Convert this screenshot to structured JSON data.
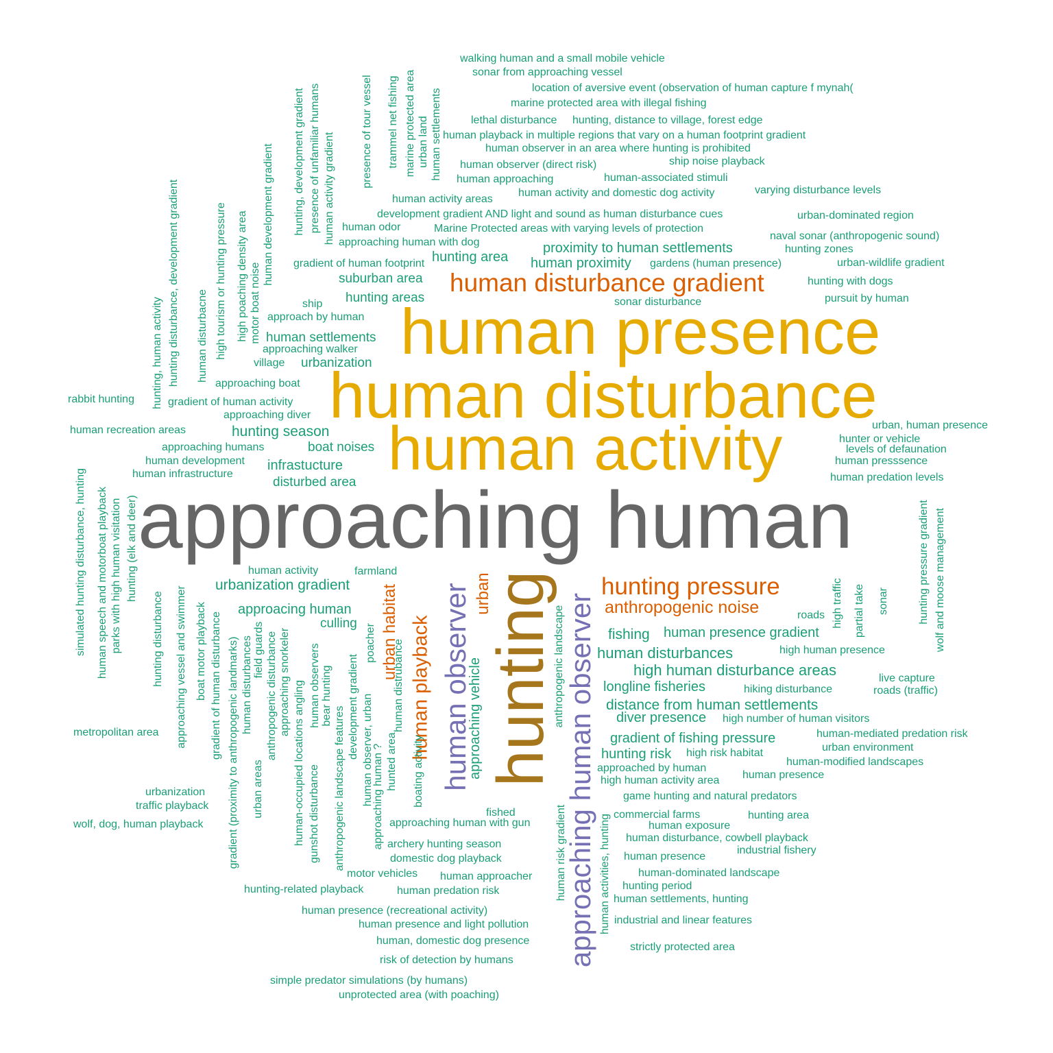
{
  "colors": {
    "teal": "#1b9e77",
    "gold": "#e6ab02",
    "gray": "#666666",
    "brown": "#a6761d",
    "orange": "#d95f02",
    "purple": "#7570b3"
  },
  "words": [
    "approaching human",
    "hunting",
    "human presence",
    "human disturbance",
    "human activity",
    "approaching human observer",
    "human observer",
    "human disturbance gradient",
    "hunting pressure",
    "human playback",
    "anthropogenic noise",
    "urban habitat",
    "urban",
    "walking human and a small mobile vehicle",
    "sonar from approaching vessel",
    "location of aversive event (observation of human capture f mynah(",
    "marine protected area with illegal fishing",
    "lethal disturbance",
    "hunting, distance to village, forest edge",
    "human playback in multiple regions that vary on a human footprint gradient",
    "human observer in an area where hunting is prohibited",
    "human observer (direct risk)",
    "ship noise playback",
    "human approaching",
    "human-associated stimuli",
    "human activity and domestic dog activity",
    "varying disturbance levels",
    "human activity areas",
    "development gradient AND light and sound as human disturbance cues",
    "urban-dominated region",
    "human odor",
    "Marine Protected areas with varying levels of protection",
    "naval sonar (anthropogenic sound)",
    "approaching human with dog",
    "hunting zones",
    "proximity to human settlements",
    "gradient of human footprint",
    "hunting area",
    "human proximity",
    "gardens (human presence)",
    "urban-wildlife gradient",
    "suburban area",
    "hunting with dogs",
    "hunting areas",
    "pursuit by human",
    "ship",
    "sonar disturbance",
    "approach by human",
    "human settlements",
    "approaching walker",
    "village",
    "urbanization",
    "approaching boat",
    "rabbit hunting",
    "gradient of human activity",
    "approaching diver",
    "urban, human presence",
    "human recreation areas",
    "hunting season",
    "hunter or vehicle",
    "approaching humans",
    "boat noises",
    "levels of defaunation",
    "human development",
    "infrastucture",
    "human presssence",
    "human infrastructure",
    "human predation levels",
    "disturbed area",
    "human activity",
    "farmland",
    "urbanization gradient",
    "approacing human",
    "fishing",
    "human presence gradient",
    "culling",
    "roads",
    "human disturbances",
    "high human presence",
    "high human disturbance areas",
    "live capture",
    "longline fisheries",
    "hiking disturbance",
    "roads (traffic)",
    "distance from human settlements",
    "diver presence",
    "high number of human visitors",
    "metropolitan area",
    "gradient of fishing pressure",
    "human-mediated predation risk",
    "urban environment",
    "hunting risk",
    "high risk habitat",
    "human-modified landscapes",
    "approached by human",
    "human presence",
    "high human activity area",
    "urbanization",
    "game hunting and natural predators",
    "traffic playback",
    "fished",
    "commercial farms",
    "hunting area",
    "wolf, dog, human playback",
    "approaching human with gun",
    "human exposure",
    "human disturbance, cowbell playback",
    "archery hunting season",
    "industrial fishery",
    "human presence",
    "domestic dog playback",
    "motor vehicles",
    "human approacher",
    "human-dominated landscape",
    "hunting period",
    "hunting-related playback",
    "human predation risk",
    "human settlements, hunting",
    "human presence (recreational activity)",
    "industrial and linear features",
    "human presence and light pollution",
    "human, domestic dog presence",
    "strictly protected area",
    "risk of detection by humans",
    "simple predator simulations (by humans)",
    "unprotected area (with poaching)",
    "presence of tour vessel",
    "trammel net fishing",
    "marine protected area",
    "urban land",
    "human settlements",
    "hunting, development gradient",
    "presence of unfamiliar humans",
    "human activity gradient",
    "human development gradient",
    "hunting disturbance, development gradient",
    "high tourism or hunting pressure",
    "high poaching density area",
    "motor boat noise",
    "hunting, human activity",
    "human disturbacne",
    "simulated hunting disturbance, hunting",
    "human speech and motorboat playback",
    "parks with high human visitation",
    "hunting (elk and deer)",
    "hunting disturbance",
    "approaching vessel and swimmer",
    "boat motor playback",
    "gradient of human disturbance",
    "gradient (proximity to anthropogenic landmarks)",
    "human disturbances",
    "urban areas",
    "field guards",
    "anthropogenic disturbance",
    "approaching snorkeler",
    "human-occupied locations angling",
    "gunshot disturbance",
    "human observers",
    "bear hunting",
    "anthropogenic landscape features",
    "development gradient",
    "human observer, urban",
    "approaching human ?",
    "poacher",
    "hunted area",
    "human distrubance",
    "boating activity",
    "approaching vehicle",
    "anthropogenic landscape",
    "human risk gradient",
    "human activities, hunting",
    "high traffic",
    "partial take",
    "sonar",
    "hunting pressure gradient",
    "wolf and moose management"
  ]
}
